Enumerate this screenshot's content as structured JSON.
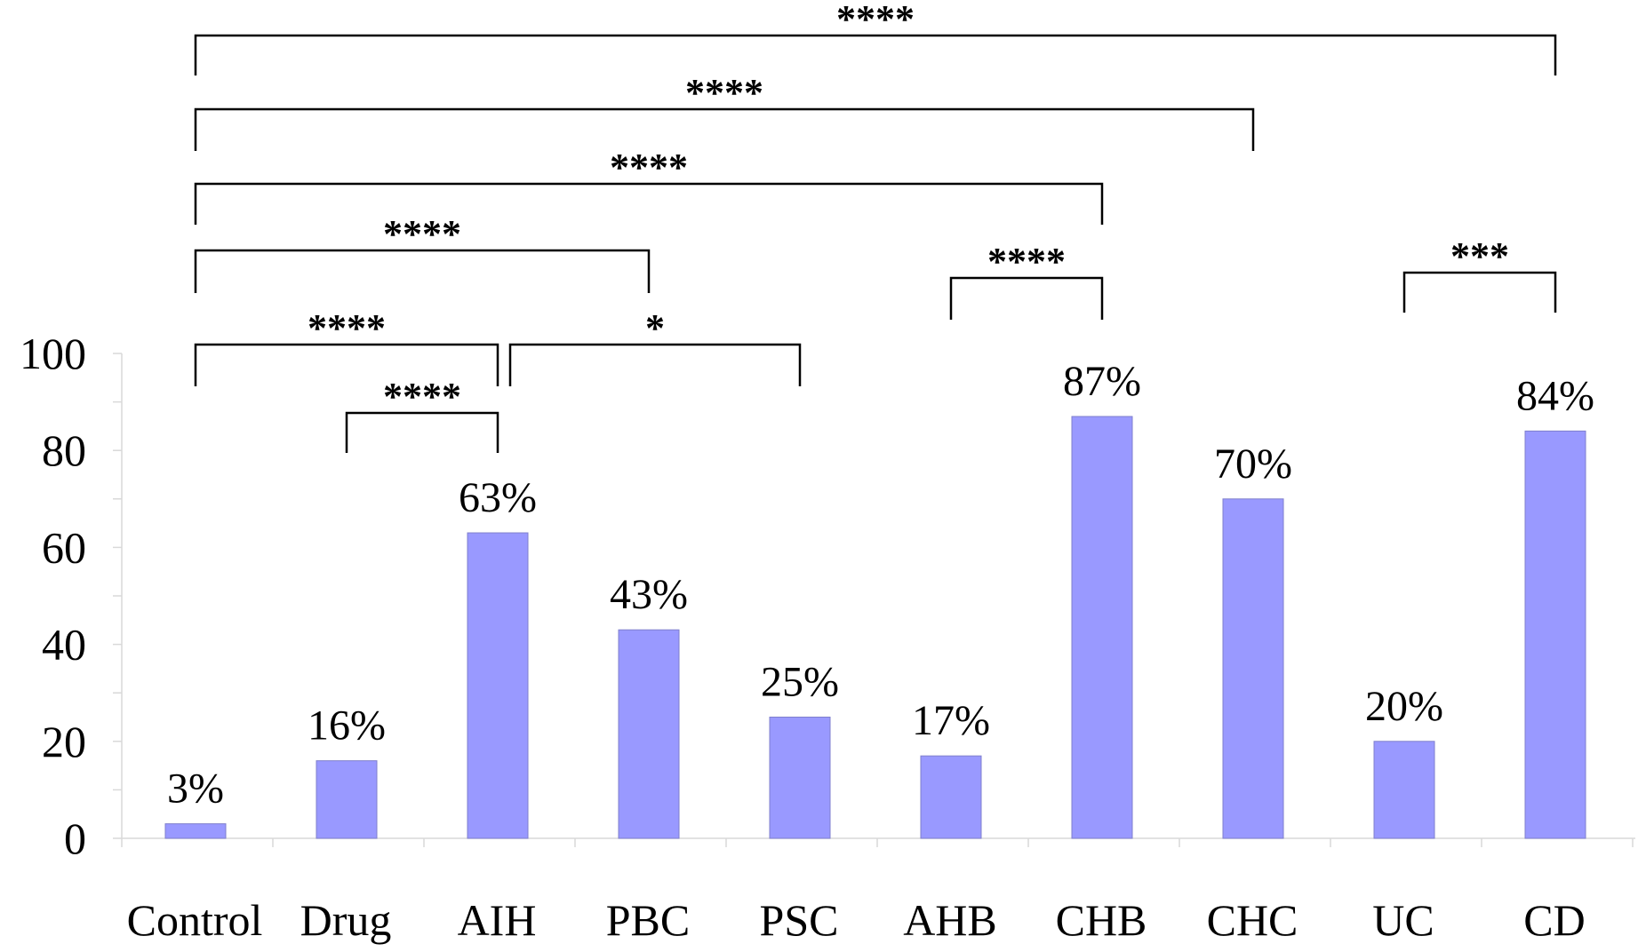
{
  "chart_data": {
    "type": "bar",
    "categories": [
      "Control",
      "Drug",
      "AIH",
      "PBC",
      "PSC",
      "AHB",
      "CHB",
      "CHC",
      "UC",
      "CD"
    ],
    "values": [
      3,
      16,
      63,
      43,
      25,
      17,
      87,
      70,
      20,
      84
    ],
    "data_labels": [
      "3%",
      "16%",
      "63%",
      "43%",
      "25%",
      "17%",
      "87%",
      "70%",
      "20%",
      "84%"
    ],
    "title": "",
    "xlabel": "",
    "ylabel": "",
    "ylim": [
      0,
      100
    ],
    "yticks": [
      0,
      20,
      40,
      60,
      80,
      100
    ],
    "ytick_labels": [
      "0",
      "20",
      "40",
      "60",
      "80",
      "100"
    ],
    "grid": false,
    "bar_color": "#9999ff",
    "significance": [
      {
        "from": "Control",
        "to": "CD",
        "label": "****"
      },
      {
        "from": "Control",
        "to": "CHC",
        "label": "****"
      },
      {
        "from": "Control",
        "to": "CHB",
        "label": "****"
      },
      {
        "from": "Control",
        "to": "PBC",
        "label": "****"
      },
      {
        "from": "Control",
        "to": "AIH",
        "label": "****"
      },
      {
        "from": "Drug",
        "to": "AIH",
        "label": "****"
      },
      {
        "from": "AIH",
        "to": "PSC",
        "label": "*"
      },
      {
        "from": "AHB",
        "to": "CHB",
        "label": "****"
      },
      {
        "from": "UC",
        "to": "CD",
        "label": "***"
      }
    ]
  }
}
